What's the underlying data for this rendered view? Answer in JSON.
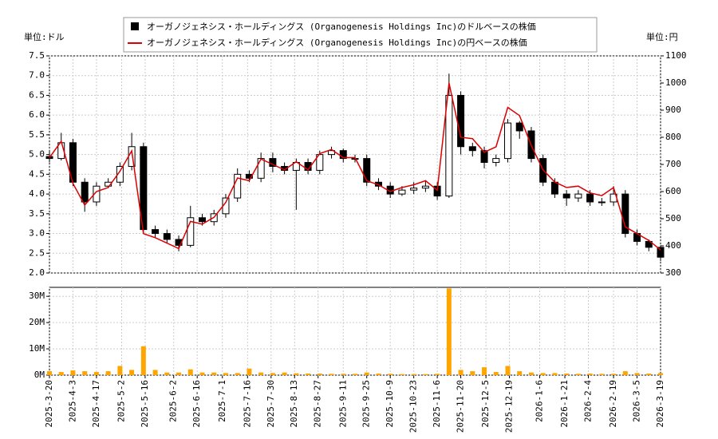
{
  "chart_data": [
    {
      "type": "candlestick",
      "unit_left": "単位:ドル",
      "unit_right": "単位:円",
      "x": [
        "2025-3-20",
        "2025-3-27",
        "2025-4-3",
        "2025-4-10",
        "2025-4-17",
        "2025-4-24",
        "2025-5-1",
        "2025-5-8",
        "2025-5-15",
        "2025-5-22",
        "2025-5-29",
        "2025-6-5",
        "2025-6-12",
        "2025-6-19",
        "2025-6-26",
        "2025-7-3",
        "2025-7-10",
        "2025-7-17",
        "2025-7-24",
        "2025-7-31",
        "2025-8-7",
        "2025-8-14",
        "2025-8-21",
        "2025-8-28",
        "2025-9-4",
        "2025-9-11",
        "2025-9-18",
        "2025-9-25",
        "2025-10-2",
        "2025-10-9",
        "2025-10-16",
        "2025-10-23",
        "2025-10-30",
        "2025-11-6",
        "2025-11-13",
        "2025-11-20",
        "2025-11-27",
        "2025-12-4",
        "2025-12-11",
        "2025-12-18",
        "2025-12-25",
        "2026-1-1",
        "2026-1-8",
        "2026-1-15",
        "2026-1-22",
        "2026-1-29",
        "2026-2-5",
        "2026-2-12",
        "2026-2-19",
        "2026-2-26",
        "2026-3-5",
        "2026-3-12",
        "2026-3-19"
      ],
      "xlim": [
        "2025-3-20",
        "2026-3-19"
      ],
      "series": [
        {
          "name": "オーガノジェネシス・ホールディングス (Organogenesis Holdings Inc)のドルベースの株価",
          "color": "#000000",
          "open": [
            4.95,
            4.9,
            5.3,
            4.3,
            3.8,
            4.2,
            4.3,
            4.7,
            5.2,
            3.1,
            3.0,
            2.85,
            2.7,
            3.4,
            3.3,
            3.5,
            3.9,
            4.5,
            4.4,
            4.9,
            4.7,
            4.6,
            4.8,
            4.6,
            5.0,
            5.1,
            4.9,
            4.9,
            4.3,
            4.2,
            4.0,
            4.1,
            4.15,
            4.2,
            3.95,
            6.5,
            5.2,
            5.1,
            4.8,
            4.9,
            5.8,
            5.6,
            4.9,
            4.3,
            4.0,
            3.9,
            4.0,
            3.8,
            3.8,
            4.0,
            3.0,
            2.8,
            2.65
          ],
          "high": [
            5.1,
            5.55,
            5.4,
            4.4,
            4.3,
            4.4,
            4.8,
            5.55,
            5.3,
            3.2,
            3.1,
            2.95,
            3.7,
            3.5,
            3.6,
            4.0,
            4.65,
            4.6,
            5.05,
            5.05,
            4.8,
            4.9,
            4.9,
            5.1,
            5.2,
            5.15,
            5.0,
            5.0,
            4.4,
            4.3,
            4.2,
            4.3,
            4.35,
            4.3,
            7.05,
            6.6,
            5.3,
            5.2,
            5.0,
            5.9,
            5.85,
            5.7,
            5.0,
            4.4,
            4.1,
            4.1,
            4.1,
            3.9,
            4.2,
            4.1,
            3.1,
            2.85,
            2.7
          ],
          "low": [
            4.8,
            4.85,
            4.2,
            3.55,
            3.7,
            4.15,
            4.2,
            4.6,
            3.0,
            2.9,
            2.75,
            2.55,
            2.65,
            3.2,
            3.2,
            3.4,
            3.8,
            4.3,
            4.3,
            4.55,
            4.5,
            3.6,
            4.5,
            4.5,
            4.9,
            4.8,
            4.8,
            4.2,
            4.1,
            3.9,
            3.95,
            4.0,
            4.05,
            3.85,
            3.9,
            5.0,
            4.95,
            4.65,
            4.7,
            4.8,
            5.4,
            4.8,
            4.2,
            3.9,
            3.7,
            3.8,
            3.7,
            3.7,
            3.7,
            2.9,
            2.7,
            2.55,
            2.3
          ],
          "close": [
            4.9,
            5.3,
            4.3,
            3.8,
            4.2,
            4.3,
            4.7,
            5.2,
            3.1,
            3.0,
            2.85,
            2.7,
            3.4,
            3.3,
            3.5,
            3.9,
            4.5,
            4.4,
            4.9,
            4.7,
            4.6,
            4.8,
            4.6,
            5.0,
            5.1,
            4.9,
            4.9,
            4.3,
            4.2,
            4.0,
            4.1,
            4.15,
            4.2,
            3.95,
            6.5,
            5.2,
            5.1,
            4.8,
            4.9,
            5.8,
            5.6,
            4.9,
            4.3,
            4.0,
            3.9,
            4.0,
            3.8,
            3.8,
            4.0,
            3.0,
            2.8,
            2.65,
            2.4
          ]
        },
        {
          "name": "オーガノジェネシス・ホールディングス (Organogenesis Holdings Inc)の円ベースの株価",
          "color": "#dd0000",
          "axis": "y2",
          "values": [
            725,
            785,
            630,
            550,
            600,
            615,
            675,
            750,
            445,
            430,
            410,
            390,
            490,
            480,
            505,
            560,
            650,
            640,
            720,
            700,
            680,
            710,
            680,
            740,
            755,
            725,
            725,
            640,
            625,
            600,
            615,
            625,
            640,
            605,
            1000,
            800,
            795,
            745,
            765,
            910,
            880,
            770,
            680,
            635,
            615,
            620,
            595,
            585,
            615,
            470,
            445,
            420,
            385
          ]
        }
      ],
      "ylim": [
        2,
        7.5
      ],
      "yticks": [
        {
          "value": 2,
          "label": "2.0"
        },
        {
          "value": 2.5,
          "label": "2.5"
        },
        {
          "value": 3,
          "label": "3.0"
        },
        {
          "value": 3.5,
          "label": "3.5"
        },
        {
          "value": 4,
          "label": "4.0"
        },
        {
          "value": 4.5,
          "label": "4.5"
        },
        {
          "value": 5,
          "label": "5.0"
        },
        {
          "value": 5.5,
          "label": "5.5"
        },
        {
          "value": 6,
          "label": "6.0"
        },
        {
          "value": 6.5,
          "label": "6.5"
        },
        {
          "value": 7,
          "label": "7.0"
        },
        {
          "value": 7.5,
          "label": "7.5"
        }
      ],
      "y2lim": [
        300,
        1100
      ],
      "y2ticks": [
        300,
        400,
        500,
        600,
        700,
        800,
        900,
        1000,
        1100
      ],
      "grid": true
    },
    {
      "type": "bar",
      "color": "#ffa500",
      "x": [
        "2025-3-20",
        "2025-3-27",
        "2025-4-3",
        "2025-4-10",
        "2025-4-17",
        "2025-4-24",
        "2025-5-1",
        "2025-5-8",
        "2025-5-15",
        "2025-5-22",
        "2025-5-29",
        "2025-6-5",
        "2025-6-12",
        "2025-6-19",
        "2025-6-26",
        "2025-7-3",
        "2025-7-10",
        "2025-7-17",
        "2025-7-24",
        "2025-7-31",
        "2025-8-7",
        "2025-8-14",
        "2025-8-21",
        "2025-8-28",
        "2025-9-4",
        "2025-9-11",
        "2025-9-18",
        "2025-9-25",
        "2025-10-2",
        "2025-10-9",
        "2025-10-16",
        "2025-10-23",
        "2025-10-30",
        "2025-11-6",
        "2025-11-13",
        "2025-11-20",
        "2025-11-27",
        "2025-12-4",
        "2025-12-11",
        "2025-12-18",
        "2025-12-25",
        "2026-1-1",
        "2026-1-8",
        "2026-1-15",
        "2026-1-22",
        "2026-1-29",
        "2026-2-5",
        "2026-2-12",
        "2026-2-19",
        "2026-2-26",
        "2026-3-5",
        "2026-3-12",
        "2026-3-19"
      ],
      "values": [
        1500000,
        1200000,
        1800000,
        1500000,
        1200000,
        1500000,
        3500000,
        2000000,
        11000000,
        2000000,
        1000000,
        1000000,
        2200000,
        1000000,
        1000000,
        800000,
        800000,
        2500000,
        1000000,
        800000,
        1000000,
        700000,
        600000,
        600000,
        500000,
        500000,
        500000,
        1000000,
        600000,
        500000,
        400000,
        400000,
        400000,
        500000,
        33000000,
        2000000,
        1500000,
        3000000,
        1200000,
        3500000,
        1500000,
        1000000,
        800000,
        800000,
        600000,
        500000,
        600000,
        500000,
        500000,
        1500000,
        800000,
        600000,
        800000
      ],
      "xlim": [
        "2025-3-20",
        "2026-3-19"
      ],
      "xticks": [
        "2025-3-20",
        "2025-4-3",
        "2025-4-17",
        "2025-5-2",
        "2025-5-16",
        "2025-6-2",
        "2025-6-16",
        "2025-7-1",
        "2025-7-16",
        "2025-7-30",
        "2025-8-13",
        "2025-8-27",
        "2025-9-11",
        "2025-9-25",
        "2025-10-9",
        "2025-10-23",
        "2025-11-6",
        "2025-11-20",
        "2025-12-5",
        "2025-12-19",
        "2026-1-6",
        "2026-1-21",
        "2026-2-4",
        "2026-2-19",
        "2026-3-5",
        "2026-3-19"
      ],
      "ylim": [
        0,
        33400000
      ],
      "yticks": [
        {
          "value": 0,
          "label": "0M"
        },
        {
          "value": 10000000,
          "label": "10M"
        },
        {
          "value": 20000000,
          "label": "20M"
        },
        {
          "value": 30000000,
          "label": "30M"
        }
      ],
      "grid": true
    }
  ]
}
